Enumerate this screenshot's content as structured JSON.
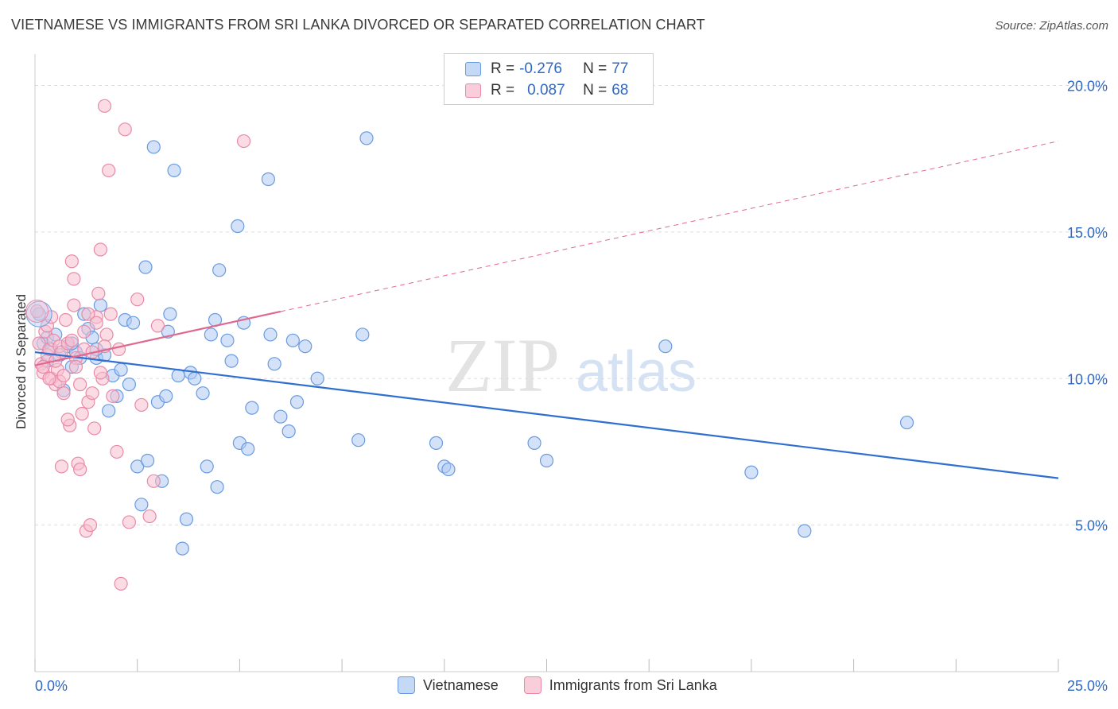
{
  "title": "VIETNAMESE VS IMMIGRANTS FROM SRI LANKA DIVORCED OR SEPARATED CORRELATION CHART",
  "source": "Source: ZipAtlas.com",
  "watermark": {
    "zip": "ZIP",
    "atlas": "atlas"
  },
  "colors": {
    "blue_fill": "#aecbf2",
    "blue_stroke": "#6a9be0",
    "blue_line": "#2f6fd0",
    "pink_fill": "#f7bfd0",
    "pink_stroke": "#e98aa8",
    "pink_line": "#e0688f",
    "value_text": "#2f68c4",
    "grid": "#dddddd"
  },
  "legend": {
    "rows": [
      {
        "r_label": "R = ",
        "r_value": "-0.276",
        "n_label": "N = ",
        "n_value": "77",
        "color": "blue"
      },
      {
        "r_label": "R = ",
        "r_value": "0.087",
        "n_label": "N = ",
        "n_value": "68",
        "color": "pink"
      }
    ]
  },
  "bottom_legend": [
    "Vietnamese",
    "Immigrants from Sri Lanka"
  ],
  "chart_data": {
    "type": "scatter",
    "ylabel": "Divorced or Separated",
    "xlim": [
      0,
      25
    ],
    "ylim": [
      0,
      20.8
    ],
    "x_tick_labels": [
      {
        "value": 0,
        "label": "0.0%"
      },
      {
        "value": 25,
        "label": "25.0%"
      }
    ],
    "y_tick_labels": [
      {
        "value": 5,
        "label": "5.0%"
      },
      {
        "value": 10,
        "label": "10.0%"
      },
      {
        "value": 15,
        "label": "15.0%"
      },
      {
        "value": 20,
        "label": "20.0%"
      }
    ],
    "grid": true,
    "series": [
      {
        "name": "Vietnamese",
        "color": "blue",
        "trend": {
          "x0": 0,
          "y0": 10.9,
          "x1": 25,
          "y1": 6.6,
          "dashed_from": null
        },
        "points": [
          [
            0.1,
            12.2
          ],
          [
            0.2,
            11.2
          ],
          [
            0.3,
            11.4
          ],
          [
            0.4,
            11.0
          ],
          [
            0.5,
            11.5
          ],
          [
            0.6,
            10.8
          ],
          [
            0.7,
            9.6
          ],
          [
            0.8,
            11.1
          ],
          [
            0.9,
            10.4
          ],
          [
            1.0,
            10.9
          ],
          [
            1.1,
            10.7
          ],
          [
            1.2,
            12.2
          ],
          [
            1.3,
            11.7
          ],
          [
            1.4,
            11.4
          ],
          [
            1.5,
            10.7
          ],
          [
            1.6,
            12.5
          ],
          [
            1.7,
            10.8
          ],
          [
            1.8,
            8.9
          ],
          [
            1.9,
            10.1
          ],
          [
            2.0,
            9.4
          ],
          [
            2.1,
            10.3
          ],
          [
            2.2,
            12.0
          ],
          [
            2.3,
            9.8
          ],
          [
            2.4,
            11.9
          ],
          [
            2.5,
            7.0
          ],
          [
            2.6,
            5.7
          ],
          [
            2.7,
            13.8
          ],
          [
            2.75,
            7.2
          ],
          [
            2.9,
            17.9
          ],
          [
            3.0,
            9.2
          ],
          [
            3.1,
            6.5
          ],
          [
            3.2,
            9.4
          ],
          [
            3.25,
            11.6
          ],
          [
            3.3,
            12.2
          ],
          [
            3.4,
            17.1
          ],
          [
            3.5,
            10.1
          ],
          [
            3.6,
            4.2
          ],
          [
            3.7,
            5.2
          ],
          [
            3.8,
            10.2
          ],
          [
            3.9,
            10.0
          ],
          [
            4.1,
            9.5
          ],
          [
            4.2,
            7.0
          ],
          [
            4.4,
            12.0
          ],
          [
            4.3,
            11.5
          ],
          [
            4.45,
            6.3
          ],
          [
            4.5,
            13.7
          ],
          [
            4.7,
            11.3
          ],
          [
            4.8,
            10.6
          ],
          [
            4.95,
            15.2
          ],
          [
            5.0,
            7.8
          ],
          [
            5.1,
            11.9
          ],
          [
            5.2,
            7.6
          ],
          [
            5.3,
            9.0
          ],
          [
            5.7,
            16.8
          ],
          [
            5.75,
            11.5
          ],
          [
            5.85,
            10.5
          ],
          [
            6.0,
            8.7
          ],
          [
            6.2,
            8.2
          ],
          [
            6.3,
            11.3
          ],
          [
            6.4,
            9.2
          ],
          [
            6.6,
            11.1
          ],
          [
            6.9,
            10.0
          ],
          [
            8.0,
            11.5
          ],
          [
            8.1,
            18.2
          ],
          [
            7.9,
            7.9
          ],
          [
            9.8,
            7.8
          ],
          [
            10.0,
            7.0
          ],
          [
            10.1,
            6.9
          ],
          [
            12.2,
            7.8
          ],
          [
            12.5,
            7.2
          ],
          [
            15.4,
            11.1
          ],
          [
            17.5,
            6.8
          ],
          [
            18.8,
            4.8
          ],
          [
            21.3,
            8.5
          ],
          [
            1.5,
            11.0
          ],
          [
            0.9,
            11.2
          ],
          [
            0.3,
            10.6
          ]
        ]
      },
      {
        "name": "Immigrants from Sri Lanka",
        "color": "pink",
        "trend": {
          "x0": 0,
          "y0": 10.45,
          "x1": 25,
          "y1": 18.1,
          "dashed_from": 6.0
        },
        "points": [
          [
            0.05,
            12.3
          ],
          [
            0.1,
            11.2
          ],
          [
            0.15,
            10.5
          ],
          [
            0.2,
            10.2
          ],
          [
            0.25,
            11.6
          ],
          [
            0.3,
            10.8
          ],
          [
            0.35,
            11.0
          ],
          [
            0.4,
            10.0
          ],
          [
            0.45,
            11.3
          ],
          [
            0.5,
            9.8
          ],
          [
            0.55,
            10.3
          ],
          [
            0.6,
            11.1
          ],
          [
            0.65,
            10.9
          ],
          [
            0.7,
            9.5
          ],
          [
            0.75,
            12.0
          ],
          [
            0.8,
            11.2
          ],
          [
            0.85,
            8.4
          ],
          [
            0.9,
            14.0
          ],
          [
            0.95,
            13.4
          ],
          [
            1.0,
            10.7
          ],
          [
            1.05,
            7.1
          ],
          [
            1.1,
            6.9
          ],
          [
            1.15,
            8.8
          ],
          [
            1.2,
            11.6
          ],
          [
            1.25,
            4.8
          ],
          [
            1.3,
            9.2
          ],
          [
            1.35,
            5.0
          ],
          [
            1.4,
            9.5
          ],
          [
            1.45,
            8.3
          ],
          [
            1.5,
            12.1
          ],
          [
            1.55,
            12.9
          ],
          [
            1.6,
            14.4
          ],
          [
            1.65,
            10.0
          ],
          [
            1.7,
            19.3
          ],
          [
            1.75,
            11.5
          ],
          [
            1.8,
            17.1
          ],
          [
            1.85,
            12.2
          ],
          [
            1.9,
            9.4
          ],
          [
            2.0,
            7.5
          ],
          [
            2.05,
            11.0
          ],
          [
            2.1,
            3.0
          ],
          [
            2.2,
            18.5
          ],
          [
            2.3,
            5.1
          ],
          [
            2.5,
            12.7
          ],
          [
            2.6,
            9.1
          ],
          [
            2.8,
            5.3
          ],
          [
            2.9,
            6.5
          ],
          [
            3.0,
            11.8
          ],
          [
            5.1,
            18.1
          ],
          [
            0.2,
            10.4
          ],
          [
            0.3,
            11.8
          ],
          [
            0.4,
            12.1
          ],
          [
            0.5,
            10.6
          ],
          [
            0.6,
            9.9
          ],
          [
            0.7,
            10.1
          ],
          [
            0.8,
            8.6
          ],
          [
            0.9,
            11.3
          ],
          [
            1.0,
            10.4
          ],
          [
            1.1,
            9.8
          ],
          [
            1.2,
            11.0
          ],
          [
            1.3,
            12.2
          ],
          [
            1.4,
            10.9
          ],
          [
            1.5,
            11.9
          ],
          [
            1.6,
            10.2
          ],
          [
            1.7,
            11.1
          ],
          [
            0.35,
            10.0
          ],
          [
            0.65,
            7.0
          ],
          [
            0.95,
            12.5
          ]
        ]
      }
    ]
  }
}
